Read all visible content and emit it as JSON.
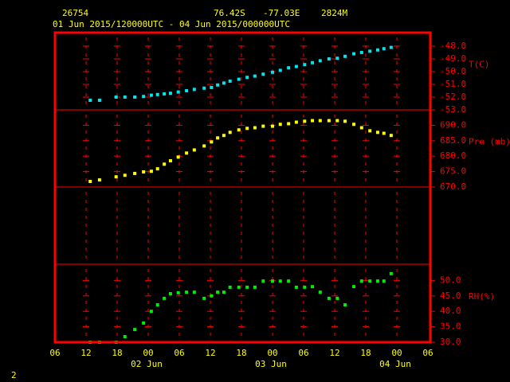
{
  "header": {
    "station": "26754",
    "lat": "76.42S",
    "lon": "-77.03E",
    "elev": "2824M",
    "period": "01 Jun 2015/120000UTC - 04 Jun 2015/000000UTC"
  },
  "footer": "2",
  "chart_data": [
    {
      "type": "scatter",
      "ylabel": "T(C)",
      "color": "#00e5ee",
      "x": [
        12.8,
        14.6,
        17.8,
        19.5,
        21.4,
        23.1,
        24.6,
        25.8,
        27.1,
        28.3,
        29.8,
        31.4,
        32.9,
        34.8,
        36.2,
        37.4,
        38.6,
        39.8,
        41.5,
        43.1,
        44.6,
        46.2,
        48.0,
        49.5,
        51.1,
        52.6,
        54.2,
        55.7,
        57.2,
        58.9,
        60.5,
        62.0,
        63.7,
        65.2,
        66.8,
        68.3,
        69.5,
        70.9
      ],
      "values": [
        -52.25,
        -52.25,
        -52.0,
        -52.0,
        -52.0,
        -51.95,
        -51.85,
        -51.8,
        -51.75,
        -51.7,
        -51.6,
        -51.5,
        -51.4,
        -51.3,
        -51.25,
        -51.05,
        -50.9,
        -50.75,
        -50.6,
        -50.45,
        -50.35,
        -50.2,
        -50.05,
        -49.9,
        -49.7,
        -49.6,
        -49.45,
        -49.3,
        -49.15,
        -49.0,
        -48.95,
        -48.8,
        -48.6,
        -48.5,
        -48.4,
        -48.3,
        -48.2,
        -48.1
      ],
      "ylim": [
        -53,
        -46.94
      ],
      "yticks": [
        {
          "value": -53,
          "label": "-53.0"
        },
        {
          "value": -52,
          "label": "-52.0"
        },
        {
          "value": -51,
          "label": "-51.0"
        },
        {
          "value": -50,
          "label": "-50.0"
        },
        {
          "value": -49,
          "label": "-49.0"
        },
        {
          "value": -48,
          "label": "-48.0"
        }
      ]
    },
    {
      "type": "scatter",
      "ylabel": "Pre (mb)",
      "color": "#ffff00",
      "x": [
        12.8,
        14.6,
        17.8,
        19.5,
        21.4,
        23.1,
        24.6,
        25.8,
        27.1,
        28.3,
        29.8,
        31.4,
        32.9,
        34.8,
        36.2,
        37.4,
        38.6,
        39.8,
        41.5,
        43.1,
        44.6,
        46.2,
        48.0,
        49.5,
        51.1,
        52.6,
        54.2,
        55.7,
        57.2,
        58.9,
        60.5,
        62.0,
        63.7,
        65.2,
        66.8,
        68.3,
        69.5,
        70.9
      ],
      "values": [
        671.8,
        672.3,
        673.3,
        673.8,
        674.4,
        674.9,
        675.1,
        675.9,
        677.4,
        678.5,
        679.7,
        681,
        682,
        683.3,
        684.6,
        685.9,
        686.7,
        687.7,
        688.5,
        689,
        689.2,
        689.7,
        689.7,
        690.3,
        690.5,
        691,
        691.3,
        691.5,
        691.5,
        691.5,
        691.5,
        691.3,
        690.3,
        689.2,
        688.2,
        687.7,
        687.4,
        686.7
      ],
      "ylim": [
        670,
        695
      ],
      "yticks": [
        {
          "value": 670,
          "label": "670.0"
        },
        {
          "value": 675,
          "label": "675.0"
        },
        {
          "value": 680,
          "label": "680.0"
        },
        {
          "value": 685,
          "label": "685.0"
        },
        {
          "value": 690,
          "label": "690.0"
        }
      ]
    },
    {
      "type": "scatter",
      "ylabel": "RH(%)",
      "color": "#00ee00",
      "x": [
        12.8,
        14.6,
        17.8,
        19.5,
        21.4,
        23.1,
        24.6,
        25.8,
        27.1,
        28.3,
        29.8,
        31.4,
        32.9,
        34.8,
        36.2,
        37.4,
        38.6,
        39.8,
        41.5,
        43.1,
        44.6,
        46.2,
        48.0,
        49.5,
        51.1,
        52.6,
        54.2,
        55.7,
        57.2,
        58.9,
        60.5,
        62.0,
        63.7,
        65.2,
        66.8,
        68.3,
        69.5,
        70.9
      ],
      "values": [
        30,
        30,
        30,
        31.8,
        34.1,
        36.2,
        40,
        42.1,
        44.2,
        45.7,
        46,
        46.2,
        46.2,
        44.2,
        45,
        46.2,
        46.2,
        47.8,
        47.8,
        47.8,
        47.8,
        49.8,
        49.8,
        49.8,
        49.8,
        47.8,
        47.8,
        48,
        46.2,
        44.2,
        44.2,
        42.1,
        48,
        49.8,
        49.8,
        49.8,
        49.8,
        52.2
      ],
      "ylim": [
        30,
        55.25
      ],
      "yticks": [
        {
          "value": 30,
          "label": "30.0"
        },
        {
          "value": 35,
          "label": "35.0"
        },
        {
          "value": 40,
          "label": "40.0"
        },
        {
          "value": 45,
          "label": "45.0"
        },
        {
          "value": 50,
          "label": "50.0"
        }
      ],
      "xlim": [
        6,
        78
      ],
      "xticks": [
        {
          "value": 6,
          "label": "06"
        },
        {
          "value": 12,
          "label": "12"
        },
        {
          "value": 18,
          "label": "18"
        },
        {
          "value": 24,
          "label": "00"
        },
        {
          "value": 30,
          "label": "06"
        },
        {
          "value": 36,
          "label": "12"
        },
        {
          "value": 42,
          "label": "18"
        },
        {
          "value": 48,
          "label": "00"
        },
        {
          "value": 54,
          "label": "06"
        },
        {
          "value": 60,
          "label": "12"
        },
        {
          "value": 66,
          "label": "18"
        },
        {
          "value": 72,
          "label": "00"
        },
        {
          "value": 78,
          "label": "06"
        }
      ],
      "date_labels": [
        {
          "value": 24,
          "label": "02 Jun"
        },
        {
          "value": 48,
          "label": "03 Jun"
        },
        {
          "value": 72,
          "label": "04 Jun"
        }
      ]
    }
  ]
}
